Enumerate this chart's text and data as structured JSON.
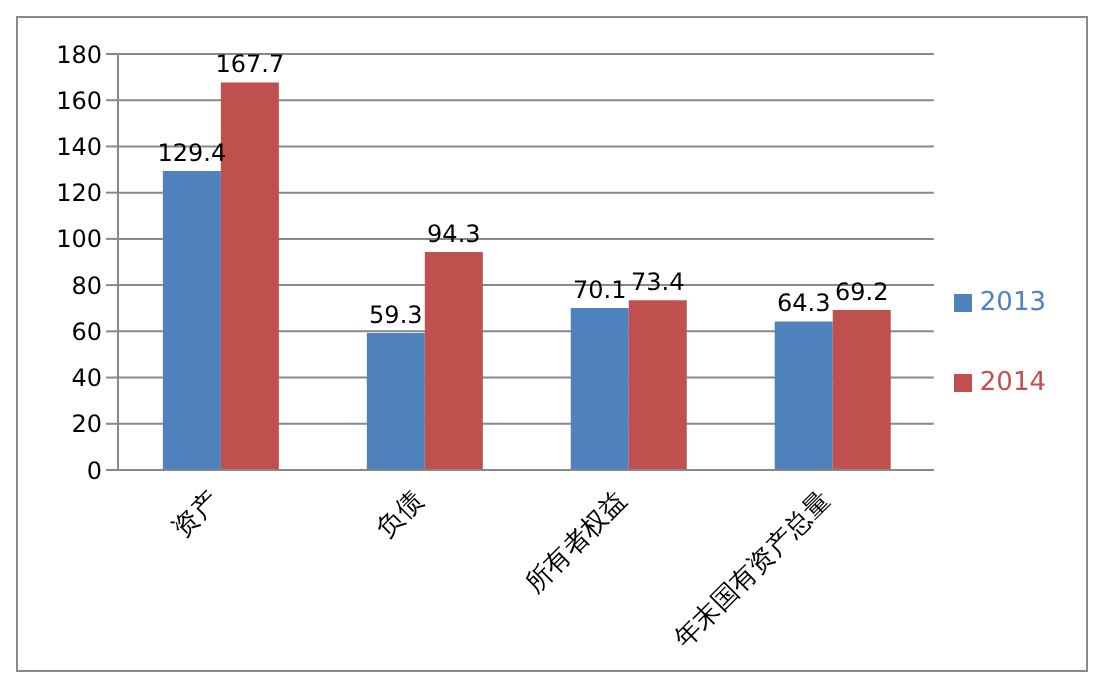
{
  "chart_data": {
    "type": "bar",
    "categories": [
      "资产",
      "负债",
      "所有者权益",
      "年末国有资产总量"
    ],
    "series": [
      {
        "name": "2013",
        "color": "#4f81bd",
        "values": [
          129.4,
          59.3,
          70.1,
          64.3
        ]
      },
      {
        "name": "2014",
        "color": "#c0504d",
        "values": [
          167.7,
          94.3,
          73.4,
          69.2
        ]
      }
    ],
    "ylim": [
      0,
      180
    ],
    "yticks": [
      0,
      20,
      40,
      60,
      80,
      100,
      120,
      140,
      160,
      180
    ],
    "grid": "y",
    "legend": "right",
    "data_labels": true
  }
}
